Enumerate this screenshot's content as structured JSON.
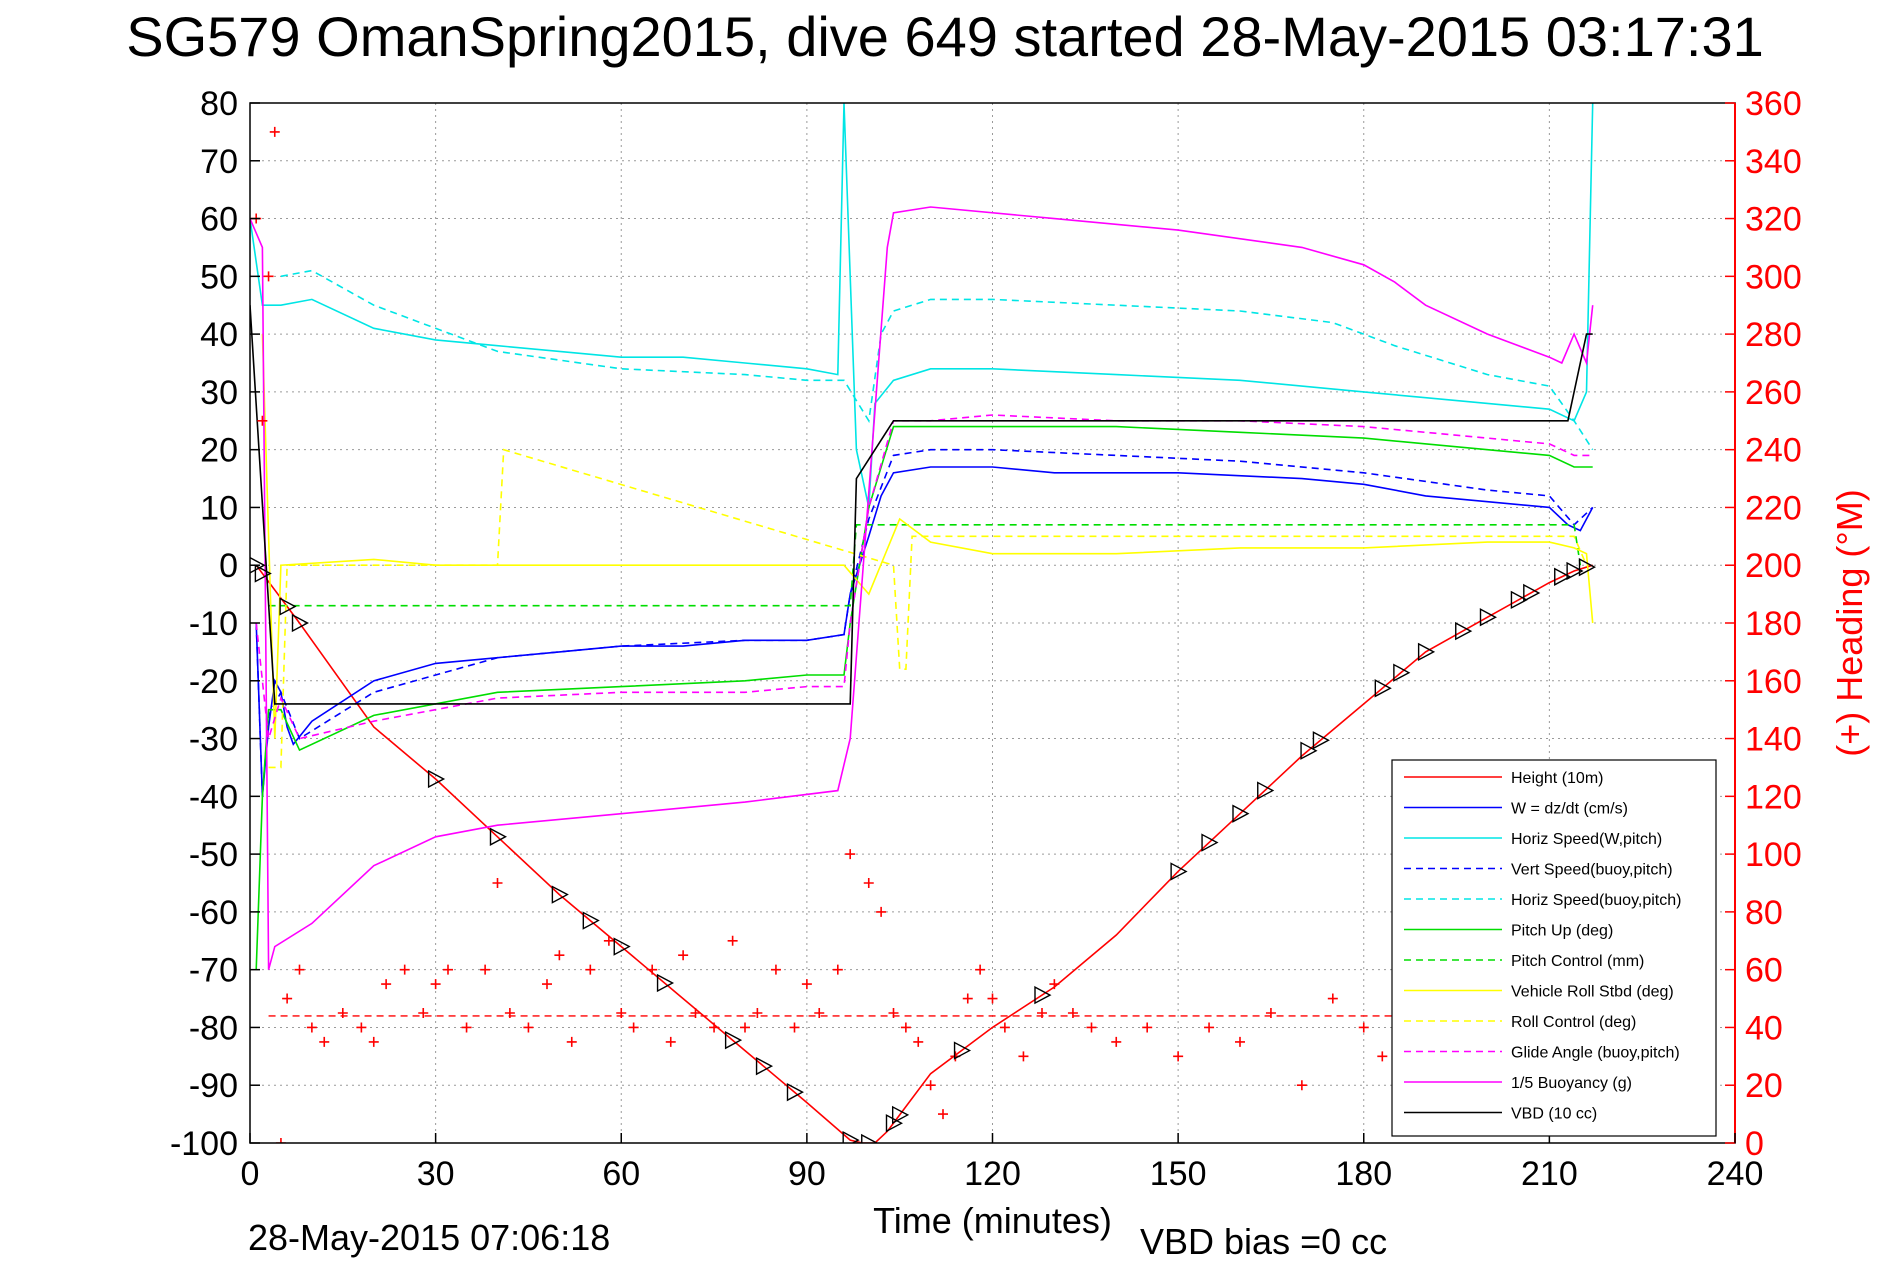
{
  "title": "SG579 OmanSpring2015, dive 649 started 28-May-2015 03:17:31",
  "footer": {
    "timestamp": "28-May-2015 07:06:18",
    "vbd_bias": "VBD bias =0 cc"
  },
  "chart_data": {
    "type": "line",
    "xlabel": "Time (minutes)",
    "ylabel_left": "",
    "ylabel_right": "(+) Heading (°M)",
    "xlim": [
      0,
      240
    ],
    "ylim_left": [
      -100,
      80
    ],
    "ylim_right": [
      0,
      360
    ],
    "x_ticks": [
      0,
      30,
      60,
      90,
      120,
      150,
      180,
      210,
      240
    ],
    "y_ticks_left": [
      80,
      70,
      60,
      50,
      40,
      30,
      20,
      10,
      0,
      -10,
      -20,
      -30,
      -40,
      -50,
      -60,
      -70,
      -80,
      -90,
      -100
    ],
    "y_ticks_right": [
      360,
      340,
      320,
      300,
      280,
      260,
      240,
      220,
      200,
      180,
      160,
      140,
      120,
      100,
      80,
      60,
      40,
      20,
      0
    ],
    "grid": true,
    "legend_position": "lower-right",
    "colors": {
      "red": "#ff0000",
      "blue": "#0000ff",
      "cyan": "#00e5e5",
      "green": "#00dd00",
      "yellow": "#ffff00",
      "magenta": "#ff00ff",
      "black": "#000000"
    },
    "series": [
      {
        "name": "Height (10m)",
        "color": "#ff0000",
        "style": "solid",
        "x": [
          1,
          8,
          20,
          30,
          40,
          50,
          60,
          70,
          80,
          90,
          97,
          99,
          101,
          103,
          110,
          120,
          130,
          140,
          150,
          160,
          170,
          180,
          190,
          200,
          210,
          214,
          217
        ],
        "y": [
          0,
          -10,
          -28,
          -37,
          -47,
          -57,
          -66,
          -75,
          -84,
          -93,
          -99.5,
          -100,
          -100,
          -98,
          -88,
          -80,
          -73,
          -64,
          -53,
          -43,
          -33,
          -24,
          -15,
          -9,
          -3,
          -1,
          0
        ]
      },
      {
        "name": "W = dz/dt (cm/s)",
        "color": "#0000ff",
        "style": "solid",
        "x": [
          1,
          2,
          3,
          4,
          5,
          6,
          7,
          10,
          20,
          30,
          40,
          50,
          60,
          70,
          80,
          90,
          96,
          97,
          100,
          102,
          104,
          110,
          120,
          130,
          150,
          170,
          180,
          190,
          200,
          210,
          213,
          215,
          217
        ],
        "y": [
          -10,
          -40,
          -28,
          -20,
          -22,
          -28,
          -31,
          -27,
          -20,
          -17,
          -16,
          -15,
          -14,
          -14,
          -13,
          -13,
          -12,
          -5,
          5,
          12,
          16,
          17,
          17,
          16,
          16,
          15,
          14,
          12,
          11,
          10,
          7,
          6,
          10
        ]
      },
      {
        "name": "Horiz Speed(W,pitch)",
        "color": "#00e5e5",
        "style": "solid",
        "x": [
          0,
          2,
          5,
          10,
          20,
          30,
          40,
          50,
          60,
          70,
          80,
          90,
          95,
          96,
          98,
          100,
          101,
          104,
          110,
          120,
          140,
          160,
          180,
          190,
          200,
          210,
          214,
          216,
          217
        ],
        "y": [
          60,
          45,
          45,
          46,
          41,
          39,
          38,
          37,
          36,
          36,
          35,
          34,
          33,
          80,
          20,
          10,
          28,
          32,
          34,
          34,
          33,
          32,
          30,
          29,
          28,
          27,
          25,
          30,
          80
        ]
      },
      {
        "name": "Vert Speed(buoy,pitch)",
        "color": "#0000ff",
        "style": "dashed",
        "x": [
          1,
          2,
          3,
          5,
          8,
          20,
          40,
          60,
          80,
          90,
          96,
          97,
          100,
          104,
          110,
          120,
          140,
          160,
          180,
          200,
          210,
          214,
          217
        ],
        "y": [
          -10,
          -40,
          -26,
          -22,
          -30,
          -22,
          -16,
          -14,
          -13,
          -13,
          -12,
          -5,
          8,
          19,
          20,
          20,
          19,
          18,
          16,
          13,
          12,
          7,
          10
        ]
      },
      {
        "name": "Horiz Speed(buoy,pitch)",
        "color": "#00e5e5",
        "style": "dashed",
        "x": [
          5,
          10,
          20,
          40,
          60,
          80,
          90,
          96,
          100,
          102,
          104,
          110,
          120,
          140,
          160,
          175,
          185,
          200,
          210,
          214,
          217
        ],
        "y": [
          50,
          51,
          45,
          37,
          34,
          33,
          32,
          32,
          25,
          40,
          44,
          46,
          46,
          45,
          44,
          42,
          38,
          33,
          31,
          25,
          20
        ]
      },
      {
        "name": "Pitch Up (deg)",
        "color": "#00dd00",
        "style": "solid",
        "x": [
          1,
          2,
          3,
          5,
          8,
          20,
          40,
          60,
          80,
          90,
          96,
          97,
          100,
          104,
          110,
          120,
          140,
          160,
          180,
          200,
          210,
          214,
          217
        ],
        "y": [
          -70,
          -40,
          -25,
          -25,
          -32,
          -26,
          -22,
          -21,
          -20,
          -19,
          -19,
          -10,
          10,
          24,
          24,
          24,
          24,
          23,
          22,
          20,
          19,
          17,
          17
        ]
      },
      {
        "name": "Pitch Control (mm)",
        "color": "#00dd00",
        "style": "dashed",
        "x": [
          3,
          97,
          98,
          214,
          215
        ],
        "y": [
          -7,
          -7,
          7,
          7,
          0
        ]
      },
      {
        "name": "Vehicle Roll Stbd (deg)",
        "color": "#ffff00",
        "style": "solid",
        "x": [
          2,
          4,
          5,
          20,
          30,
          40,
          50,
          60,
          70,
          80,
          90,
          96,
          100,
          105,
          110,
          120,
          140,
          160,
          180,
          200,
          210,
          214,
          216,
          217
        ],
        "y": [
          40,
          -30,
          0,
          1,
          0,
          0,
          0,
          0,
          0,
          0,
          0,
          0,
          -5,
          8,
          4,
          2,
          2,
          3,
          3,
          4,
          4,
          3,
          2,
          -10
        ]
      },
      {
        "name": "Roll Control (deg)",
        "color": "#ffff00",
        "style": "dashed",
        "x": [
          3,
          5,
          6,
          40,
          41,
          104,
          105,
          106,
          107,
          214,
          216
        ],
        "y": [
          -35,
          -35,
          0,
          0,
          20,
          0,
          -18,
          -18,
          5,
          5,
          0
        ]
      },
      {
        "name": "Glide Angle (buoy,pitch)",
        "color": "#ff00ff",
        "style": "dashed",
        "x": [
          1,
          3,
          5,
          8,
          20,
          40,
          60,
          80,
          90,
          96,
          97,
          100,
          104,
          110,
          120,
          140,
          160,
          180,
          200,
          210,
          214,
          217
        ],
        "y": [
          -10,
          -30,
          -23,
          -30,
          -27,
          -23,
          -22,
          -22,
          -21,
          -21,
          -10,
          10,
          25,
          25,
          26,
          25,
          25,
          24,
          22,
          21,
          19,
          19
        ]
      },
      {
        "name": "1/5 Buoyancy (g)",
        "color": "#ff00ff",
        "style": "solid",
        "x": [
          0,
          2,
          3,
          4,
          10,
          20,
          30,
          40,
          60,
          80,
          95,
          97,
          103,
          104,
          110,
          130,
          150,
          170,
          180,
          185,
          190,
          200,
          210,
          212,
          214,
          216,
          217
        ],
        "y": [
          60,
          55,
          -70,
          -66,
          -62,
          -52,
          -47,
          -45,
          -43,
          -41,
          -39,
          -30,
          55,
          61,
          62,
          60,
          58,
          55,
          52,
          49,
          45,
          40,
          36,
          35,
          40,
          35,
          45
        ]
      },
      {
        "name": "VBD (10 cc)",
        "color": "#000000",
        "style": "solid",
        "x": [
          0,
          4,
          5,
          97,
          98,
          104,
          105,
          213,
          214,
          216,
          217
        ],
        "y": [
          45,
          -24,
          -24,
          -24,
          15,
          25,
          25,
          25,
          30,
          40,
          40
        ]
      }
    ],
    "heading_series": {
      "axis": "right",
      "color": "#ff0000",
      "marker": "+",
      "x": [
        1,
        2,
        3,
        4,
        5,
        6,
        8,
        10,
        12,
        15,
        18,
        20,
        22,
        25,
        28,
        30,
        32,
        35,
        38,
        40,
        42,
        45,
        48,
        50,
        52,
        55,
        58,
        60,
        62,
        65,
        68,
        70,
        72,
        75,
        78,
        80,
        82,
        85,
        88,
        90,
        92,
        95,
        97,
        100,
        102,
        104,
        106,
        108,
        110,
        112,
        114,
        116,
        118,
        120,
        122,
        125,
        128,
        130,
        133,
        136,
        140,
        145,
        150,
        155,
        160,
        165,
        170,
        175,
        180,
        183,
        186
      ],
      "y": [
        320,
        250,
        300,
        350,
        0,
        50,
        60,
        40,
        35,
        45,
        40,
        35,
        55,
        60,
        45,
        55,
        60,
        40,
        60,
        90,
        45,
        40,
        55,
        65,
        35,
        60,
        70,
        45,
        40,
        60,
        35,
        65,
        45,
        40,
        70,
        40,
        45,
        60,
        40,
        55,
        45,
        60,
        100,
        90,
        80,
        45,
        40,
        35,
        20,
        10,
        30,
        50,
        60,
        50,
        40,
        30,
        45,
        55,
        45,
        40,
        35,
        40,
        30,
        40,
        35,
        45,
        20,
        50,
        40,
        30,
        20
      ]
    },
    "heading_dashed": {
      "axis": "right",
      "color": "#ff0000",
      "y": 44,
      "x": [
        3,
        217
      ]
    },
    "triangle_markers_x": [
      1,
      2,
      6,
      8,
      30,
      40,
      50,
      55,
      60,
      67,
      78,
      83,
      88,
      97,
      100,
      104,
      105,
      115,
      128,
      150,
      155,
      160,
      164,
      171,
      173,
      183,
      186,
      190,
      196,
      200,
      205,
      207,
      212,
      214,
      216
    ]
  }
}
